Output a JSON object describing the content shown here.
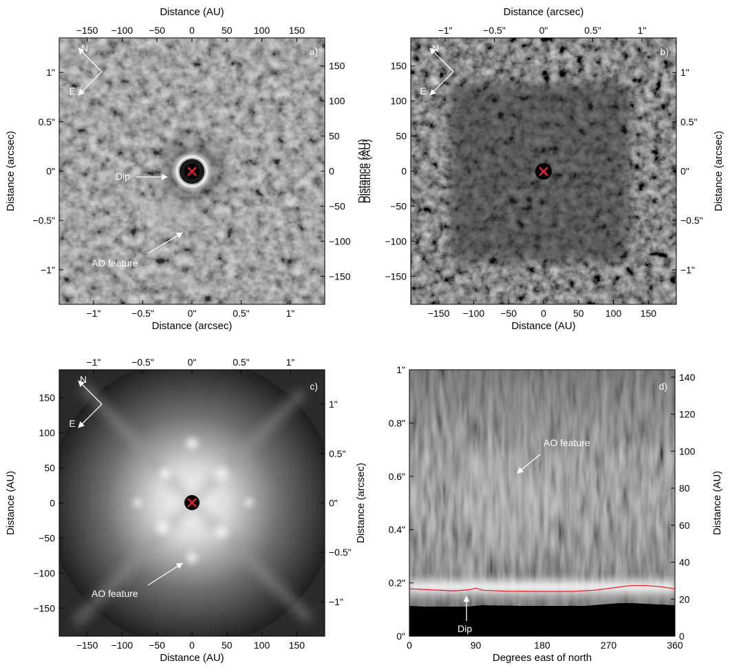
{
  "chart_data": [
    {
      "panel": "a)",
      "type": "image",
      "bottom_axis": {
        "label": "Distance (arcsec)",
        "ticks": [
          "−1\"",
          "−0.5\"",
          "0\"",
          "0.5\"",
          "1\""
        ],
        "values": [
          -1,
          -0.5,
          0,
          0.5,
          1
        ],
        "range": [
          -1.35,
          1.35
        ]
      },
      "top_axis": {
        "label": "Distance (AU)",
        "ticks": [
          "−150",
          "−100",
          "−50",
          "0",
          "50",
          "100",
          "150"
        ],
        "values": [
          -150,
          -100,
          -50,
          0,
          50,
          100,
          150
        ],
        "range": [
          -190,
          190
        ]
      },
      "left_axis": {
        "label": "Distance (arcsec)",
        "ticks": [
          "1\"",
          "0.5\"",
          "0\"",
          "−0.5\"",
          "−1\""
        ],
        "values": [
          1,
          0.5,
          0,
          -0.5,
          -1
        ],
        "range": [
          -1.35,
          1.35
        ]
      },
      "right_axis": {
        "label": "Distance (AU)",
        "ticks": [
          "150",
          "100",
          "50",
          "0",
          "−50",
          "−100",
          "−150"
        ],
        "values": [
          150,
          100,
          50,
          0,
          -50,
          -100,
          -150
        ],
        "range": [
          -190,
          190
        ]
      },
      "compass": {
        "north": "N",
        "east": "E"
      },
      "annotations": [
        {
          "text": "Dip",
          "x_arcsec": -0.24,
          "y_arcsec": -0.07
        },
        {
          "text": "AO feature",
          "x_arcsec": -0.11,
          "y_arcsec": -0.6
        }
      ],
      "star_marker": {
        "symbol": "×",
        "color": "#e8222c",
        "x": 0,
        "y": 0
      }
    },
    {
      "panel": "b)",
      "type": "image",
      "bottom_axis": {
        "label": "Distance (AU)",
        "ticks": [
          "−150",
          "−100",
          "−50",
          "0",
          "50",
          "100",
          "150"
        ],
        "values": [
          -150,
          -100,
          -50,
          0,
          50,
          100,
          150
        ],
        "range": [
          -190,
          190
        ]
      },
      "top_axis": {
        "label": "Distance (arcsec)",
        "ticks": [
          "−1\"",
          "−0.5\"",
          "0\"",
          "0.5\"",
          "1\""
        ],
        "values": [
          -1,
          -0.5,
          0,
          0.5,
          1
        ],
        "range": [
          -1.35,
          1.35
        ]
      },
      "left_axis": {
        "label": "Distance (AU)",
        "ticks": [
          "150",
          "100",
          "50",
          "0",
          "−50",
          "−100",
          "−150"
        ],
        "values": [
          150,
          100,
          50,
          0,
          -50,
          -100,
          -150
        ],
        "range": [
          -190,
          190
        ]
      },
      "right_axis": {
        "label": "Distance (arcsec)",
        "ticks": [
          "1\"",
          "0.5\"",
          "0\"",
          "−0.5\"",
          "−1\""
        ],
        "values": [
          1,
          0.5,
          0,
          -0.5,
          -1
        ],
        "range": [
          -1.35,
          1.35
        ]
      },
      "compass": {
        "north": "N",
        "east": "E"
      },
      "star_marker": {
        "symbol": "×",
        "color": "#e8222c",
        "x": 0,
        "y": 0
      }
    },
    {
      "panel": "c)",
      "type": "image",
      "bottom_axis": {
        "label": "Distance (AU)",
        "ticks": [
          "−150",
          "−100",
          "−50",
          "0",
          "50",
          "100",
          "150"
        ],
        "values": [
          -150,
          -100,
          -50,
          0,
          50,
          100,
          150
        ],
        "range": [
          -190,
          190
        ]
      },
      "top_axis": {
        "label": "",
        "ticks": [
          "−1\"",
          "−0.5\"",
          "0\"",
          "0.5\"",
          "1\""
        ],
        "values": [
          -1,
          -0.5,
          0,
          0.5,
          1
        ],
        "range": [
          -1.35,
          1.35
        ]
      },
      "left_axis": {
        "label": "Distance (AU)",
        "ticks": [
          "150",
          "100",
          "50",
          "0",
          "−50",
          "−100",
          "−150"
        ],
        "values": [
          150,
          100,
          50,
          0,
          -50,
          -100,
          -150
        ],
        "range": [
          -190,
          190
        ]
      },
      "right_axis": {
        "label": "",
        "ticks": [
          "1\"",
          "0.5\"",
          "0\"",
          "−0.5\"",
          "−1\""
        ],
        "values": [
          1,
          0.5,
          0,
          -0.5,
          -1
        ],
        "range": [
          -1.35,
          1.35
        ]
      },
      "compass": {
        "north": "N",
        "east": "E"
      },
      "annotations": [
        {
          "text": "AO feature",
          "x_au": -15,
          "y_au": -82
        }
      ],
      "star_marker": {
        "symbol": "×",
        "color": "#e8222c",
        "x": 0,
        "y": 0
      }
    },
    {
      "panel": "d)",
      "type": "heatmap",
      "bottom_axis": {
        "label": "Degrees east of north",
        "ticks": [
          "0",
          "90",
          "180",
          "270",
          "360"
        ],
        "values": [
          0,
          90,
          180,
          270,
          360
        ],
        "range": [
          0,
          360
        ]
      },
      "left_axis": {
        "label": "Distance (arcsec)",
        "ticks": [
          "0\"",
          "0.2\"",
          "0.4\"",
          "0.6\"",
          "0.8\"",
          "1\""
        ],
        "values": [
          0,
          0.2,
          0.4,
          0.6,
          0.8,
          1
        ],
        "range": [
          0,
          1
        ]
      },
      "right_axis": {
        "label": "Distance (AU)",
        "ticks": [
          "0",
          "20",
          "40",
          "60",
          "80",
          "100",
          "120",
          "140"
        ],
        "values": [
          0,
          20,
          40,
          60,
          80,
          100,
          120,
          140
        ],
        "range": [
          0,
          144
        ]
      },
      "annotations": [
        {
          "text": "AO feature",
          "pa_deg": 136,
          "r_arcsec": 0.6
        },
        {
          "text": "Dip",
          "pa_deg": 72,
          "r_arcsec": 0.16
        }
      ],
      "red_line": {
        "color": "#e8222c",
        "x": [
          0,
          30,
          60,
          80,
          90,
          100,
          130,
          180,
          220,
          250,
          280,
          300,
          320,
          340,
          360
        ],
        "y": [
          0.178,
          0.174,
          0.17,
          0.174,
          0.18,
          0.172,
          0.169,
          0.168,
          0.168,
          0.172,
          0.183,
          0.19,
          0.19,
          0.186,
          0.178
        ]
      }
    }
  ]
}
